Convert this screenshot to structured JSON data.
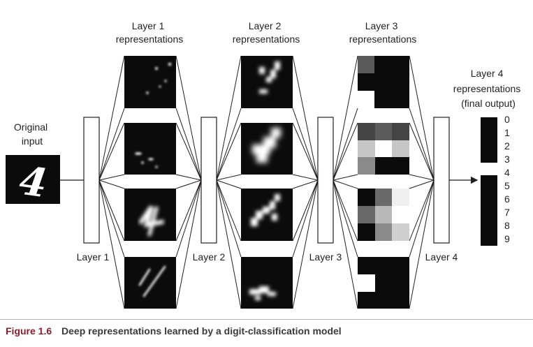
{
  "labels": {
    "original_input": [
      "Original",
      "input"
    ],
    "layer1_repr": [
      "Layer 1",
      "representations"
    ],
    "layer2_repr": [
      "Layer 2",
      "representations"
    ],
    "layer3_repr": [
      "Layer 3",
      "representations"
    ],
    "layer4_repr": [
      "Layer 4",
      "representations",
      "(final output)"
    ],
    "layer1": "Layer 1",
    "layer2": "Layer 2",
    "layer3": "Layer 3",
    "layer4": "Layer 4",
    "input_glyph": "4"
  },
  "digits": [
    "0",
    "1",
    "2",
    "3",
    "4",
    "5",
    "6",
    "7",
    "8",
    "9"
  ],
  "final_output_active_digit": "4",
  "caption": {
    "figure_number": "Figure 1.6",
    "text": "Deep representations learned by a digit-classification model"
  },
  "colors": {
    "map_background": "#0b0b0b",
    "activation": "#ffffff",
    "caption_accent": "#8a1c2b"
  }
}
